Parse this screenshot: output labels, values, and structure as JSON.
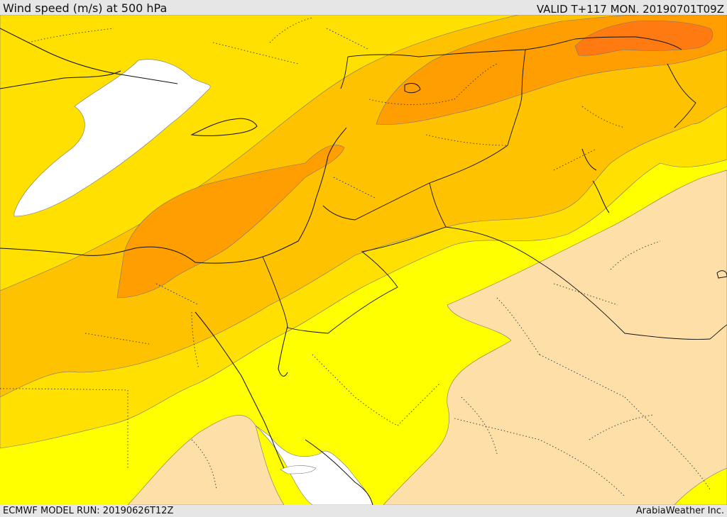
{
  "header": {
    "title": "Wind speed (m/s) at 500 hPa",
    "valid": "VALID T+117 MON. 20190701T09Z"
  },
  "footer": {
    "model_run": "ECMWF MODEL RUN: 20190626T12Z",
    "provider": "ArabiaWeather Inc."
  },
  "colors": {
    "band_lt_10": "#ffdfa8",
    "band_lt_15": "#ffff00",
    "band_lt_20": "#ffe000",
    "band_lt_25": "#ffc200",
    "band_lt_30": "#ff9e00",
    "band_ge_30": "#ff7a10",
    "water_calm": "#ffffff"
  }
}
